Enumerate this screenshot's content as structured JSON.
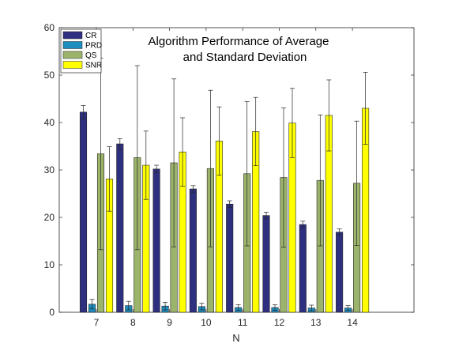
{
  "chart_data": {
    "type": "bar",
    "title_lines": [
      "Algorithm Performance of Average",
      "and Standard Deviation"
    ],
    "xlabel": "N",
    "ylabel": "",
    "categories": [
      "7",
      "8",
      "9",
      "10",
      "11",
      "12",
      "13",
      "14"
    ],
    "ylim": [
      0,
      60
    ],
    "yticks": [
      0,
      10,
      20,
      30,
      40,
      50,
      60
    ],
    "legend_position": "top-left",
    "grid": false,
    "series": [
      {
        "name": "CR",
        "color": "#2e2f7f",
        "values": [
          42.2,
          35.5,
          30.2,
          26.0,
          22.8,
          20.4,
          18.5,
          16.9
        ],
        "errors": [
          1.4,
          1.1,
          0.8,
          0.7,
          0.7,
          0.7,
          0.7,
          0.7
        ]
      },
      {
        "name": "PRD",
        "color": "#1d8cbe",
        "values": [
          1.7,
          1.4,
          1.3,
          1.2,
          1.0,
          1.0,
          0.9,
          0.9
        ],
        "errors": [
          1.0,
          0.9,
          0.8,
          0.7,
          0.6,
          0.6,
          0.6,
          0.5
        ]
      },
      {
        "name": "QS",
        "color": "#9bb36a",
        "values": [
          33.4,
          32.6,
          31.5,
          30.3,
          29.2,
          28.4,
          27.8,
          27.2
        ],
        "errors": [
          20.2,
          19.4,
          17.7,
          16.5,
          15.2,
          14.7,
          13.8,
          13.1
        ]
      },
      {
        "name": "SNR",
        "color": "#ffff00",
        "values": [
          28.1,
          31.0,
          33.8,
          36.1,
          38.1,
          39.9,
          41.5,
          43.0
        ],
        "errors": [
          6.8,
          7.2,
          7.2,
          7.2,
          7.2,
          7.3,
          7.5,
          7.6
        ]
      }
    ]
  }
}
